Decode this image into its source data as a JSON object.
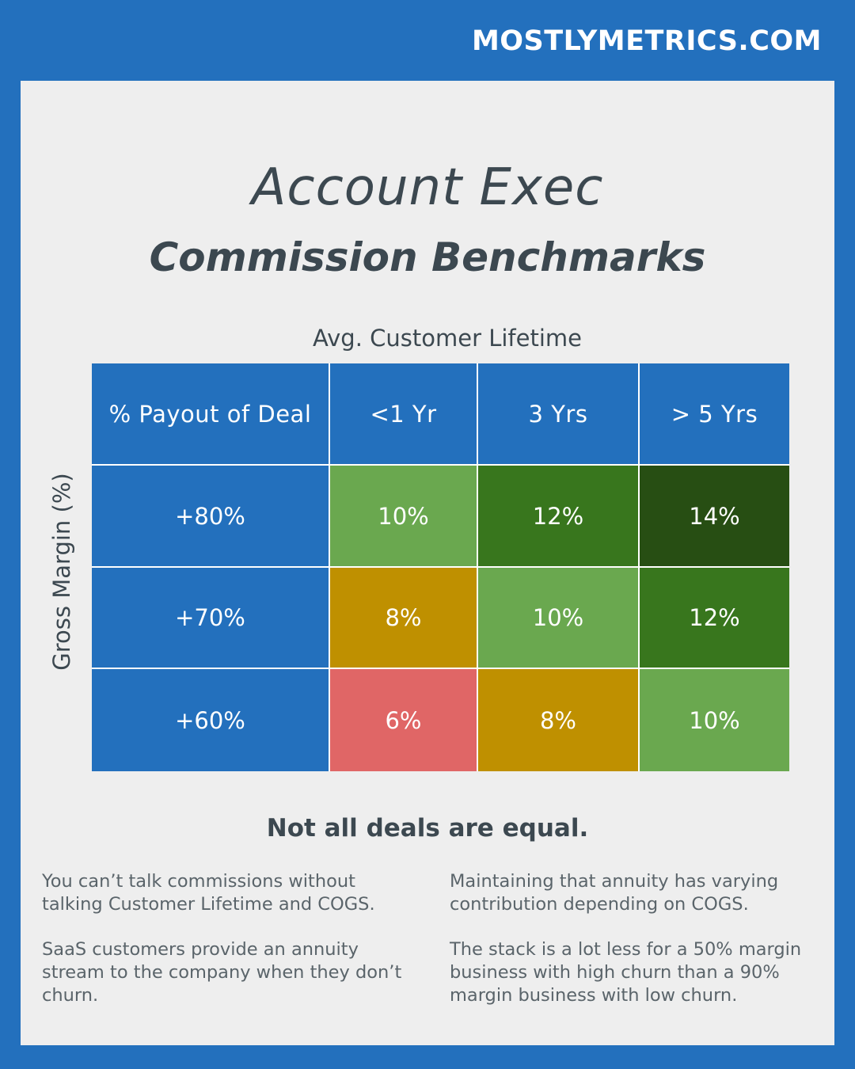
{
  "site_label": "MOSTLYMETRICS.COM",
  "title_line1": "Account Exec",
  "title_line2": "Commission Benchmarks",
  "chart_data": {
    "type": "table",
    "x_axis_label": "Avg. Customer Lifetime",
    "y_axis_label": "Gross Margin (%)",
    "corner_label": "% Payout of Deal",
    "columns": [
      "<1 Yr",
      "3 Yrs",
      "> 5 Yrs"
    ],
    "rows": [
      {
        "label": "+80%",
        "values": [
          "10%",
          "12%",
          "14%"
        ],
        "colors": [
          "#6aa84f",
          "#38761d",
          "#274e13"
        ]
      },
      {
        "label": "+70%",
        "values": [
          "8%",
          "10%",
          "12%"
        ],
        "colors": [
          "#bf9000",
          "#6aa84f",
          "#38761d"
        ]
      },
      {
        "label": "+60%",
        "values": [
          "6%",
          "8%",
          "10%"
        ],
        "colors": [
          "#e06666",
          "#bf9000",
          "#6aa84f"
        ]
      }
    ]
  },
  "tagline": "Not all deals are equal.",
  "notes": {
    "left": [
      "You can’t talk commissions without talking Customer Lifetime and COGS.",
      "SaaS customers provide an annuity stream to the company when they don’t churn."
    ],
    "right": [
      "Maintaining that annuity has varying contribution depending on COGS.",
      "The stack is a lot less for a 50% margin business with high churn than a 90% margin business with low churn."
    ]
  },
  "colors": {
    "brand_blue": "#2370bd",
    "panel_bg": "#eeeeee",
    "text_dark": "#3c4850"
  }
}
